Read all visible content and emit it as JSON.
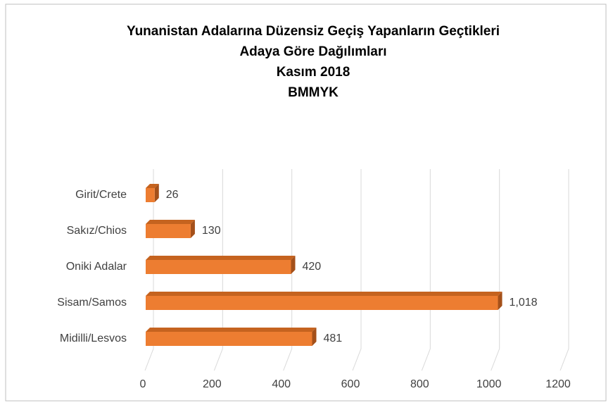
{
  "chart_data": {
    "type": "bar3d_horizontal",
    "title": [
      "Yunanistan Adalarına Düzensiz Geçiş Yapanların Geçtikleri",
      "Adaya Göre Dağılımları",
      "Kasım 2018",
      "BMMYK"
    ],
    "categories": [
      "Girit/Crete",
      "Sakız/Chios",
      "Oniki Adalar",
      "Sisam/Samos",
      "Midilli/Lesvos"
    ],
    "values": [
      26,
      130,
      420,
      1018,
      481
    ],
    "value_labels": [
      "26",
      "130",
      "420",
      "1,018",
      "481"
    ],
    "color": "#ed7d31",
    "xlim": [
      0,
      1200
    ],
    "xticks": [
      0,
      200,
      400,
      600,
      800,
      1000,
      1200
    ],
    "grid": true
  }
}
